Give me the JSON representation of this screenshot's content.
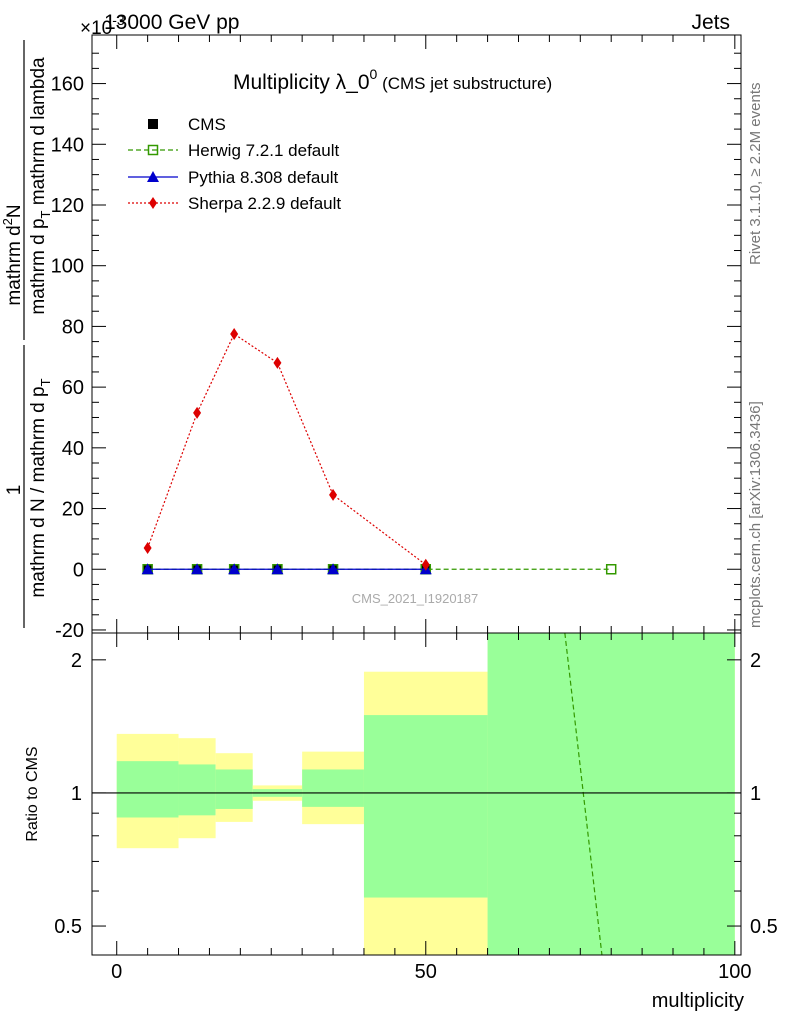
{
  "header": {
    "energy_label": "13000 GeV pp",
    "process_label": "Jets",
    "scale_exponent_label": "×10",
    "scale_exponent_sup": "-3"
  },
  "side_labels": {
    "rivet": "Rivet 3.1.10, ≥ 2.2M events",
    "mcplots": "mcplots.cern.ch [arXiv:1306.3436]"
  },
  "watermark": "CMS_2021_I1920187",
  "chart_data": [
    {
      "type": "line",
      "panel": "main",
      "title_main": "Multiplicity λ_0",
      "title_sup": "0",
      "title_sub": "(CMS jet substructure)",
      "ylabel_line1": "mathrm d",
      "ylabel_line1_sup": "2",
      "ylabel_line1_end": "N",
      "ylabel_line2": "mathrm d p",
      "ylabel_line2_sub": "T",
      "ylabel_line2_end": " mathrm d lambda",
      "ylabel_numerator": "1",
      "ylabel_denominator": "mathrm d N / mathrm d p",
      "ylabel_denominator_sub": "T",
      "xlim": [
        -4,
        101
      ],
      "ylim": [
        -21,
        176
      ],
      "y_scale_note": "×10^-3",
      "yticks": [
        -20,
        0,
        20,
        40,
        60,
        80,
        100,
        120,
        140,
        160
      ],
      "legend_position": "top-left",
      "series": [
        {
          "name": "CMS",
          "color": "#000000",
          "marker": "square-filled",
          "x": [
            5,
            13,
            19,
            26,
            35,
            50
          ],
          "y": [
            0,
            0,
            0,
            0,
            0,
            0
          ]
        },
        {
          "name": "Herwig 7.2.1 default",
          "color": "#339900",
          "marker": "square-open",
          "line": "dashed",
          "x": [
            5,
            13,
            19,
            26,
            35,
            50,
            80
          ],
          "y": [
            0,
            0,
            0,
            0,
            0,
            0,
            0
          ]
        },
        {
          "name": "Pythia 8.308 default",
          "color": "#0000cc",
          "marker": "triangle",
          "line": "solid",
          "x": [
            5,
            13,
            19,
            26,
            35,
            50
          ],
          "y": [
            0,
            0,
            0,
            0,
            0,
            0
          ]
        },
        {
          "name": "Sherpa 2.2.9 default",
          "color": "#dd0000",
          "marker": "diamond",
          "line": "dotted",
          "x": [
            5,
            13,
            19,
            26,
            35,
            50
          ],
          "y": [
            7,
            51.5,
            77.5,
            68,
            24.5,
            1.5
          ]
        }
      ]
    },
    {
      "type": "area",
      "panel": "ratio",
      "ylabel": "Ratio to CMS",
      "xlabel": "multiplicity",
      "xlim": [
        -4,
        101
      ],
      "ylim": [
        0.43,
        2.3
      ],
      "y_scale": "log",
      "xticks": [
        0,
        50,
        100
      ],
      "yticks": [
        0.5,
        1,
        2
      ],
      "band_colors": {
        "inner": "#99ff99",
        "outer": "#ffff99"
      },
      "bins": [
        {
          "x0": 0,
          "x1": 10,
          "inner": [
            0.88,
            1.18
          ],
          "outer": [
            0.75,
            1.36
          ]
        },
        {
          "x0": 10,
          "x1": 16,
          "inner": [
            0.89,
            1.16
          ],
          "outer": [
            0.79,
            1.33
          ]
        },
        {
          "x0": 16,
          "x1": 22,
          "inner": [
            0.92,
            1.13
          ],
          "outer": [
            0.86,
            1.23
          ]
        },
        {
          "x0": 22,
          "x1": 30,
          "inner": [
            0.98,
            1.02
          ],
          "outer": [
            0.96,
            1.04
          ]
        },
        {
          "x0": 30,
          "x1": 40,
          "inner": [
            0.93,
            1.13
          ],
          "outer": [
            0.85,
            1.24
          ]
        },
        {
          "x0": 40,
          "x1": 60,
          "inner": [
            0.58,
            1.5
          ],
          "outer": [
            0.43,
            1.88
          ]
        },
        {
          "x0": 60,
          "x1": 100,
          "inner": [
            0.43,
            2.3
          ],
          "outer": [
            0.43,
            2.3
          ]
        }
      ],
      "series": [
        {
          "name": "Herwig 7.2.1 default",
          "color": "#339900",
          "line": "dashed",
          "x": [
            72.5,
            78.5
          ],
          "y": [
            2.3,
            0.43
          ]
        },
        {
          "name": "reference",
          "color": "#000000",
          "line": "solid",
          "x": [
            -4,
            101
          ],
          "y": [
            1,
            1
          ]
        }
      ]
    }
  ]
}
